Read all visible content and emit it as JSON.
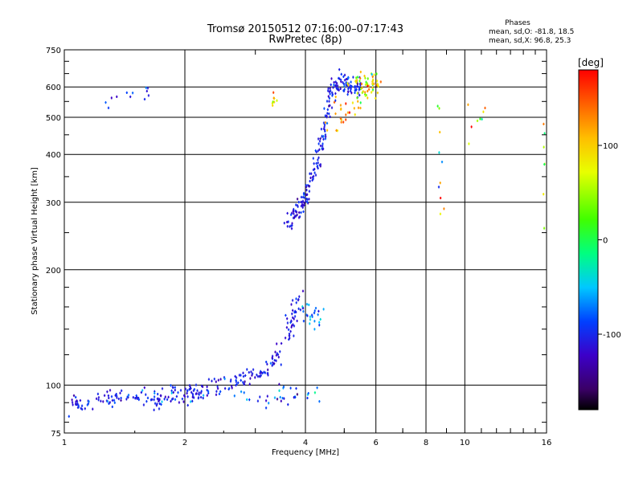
{
  "chart_data": {
    "type": "scatter",
    "title": "Tromsø 20150512 07:16:00–07:17:43",
    "subtitle": "RwPretec (8p)",
    "xlabel": "Frequency [MHz]",
    "ylabel": "Stationary phase Virtual Height [km]",
    "x_scale": "log",
    "y_scale": "log",
    "xlim": [
      1,
      16
    ],
    "ylim": [
      75,
      750
    ],
    "x_ticks": [
      1,
      2,
      4,
      6,
      8,
      10,
      16
    ],
    "x_tick_labels": [
      "1",
      "2",
      "4",
      "6",
      "8",
      "10",
      "16"
    ],
    "y_ticks": [
      75,
      100,
      200,
      300,
      400,
      500,
      600,
      750
    ],
    "y_tick_labels": [
      "75",
      "100",
      "200",
      "300",
      "400",
      "500",
      "600",
      "750"
    ],
    "grid": true,
    "annotation": {
      "heading": "Phases",
      "line1": "mean, sd,O: -81.8, 18.5",
      "line2": "mean, sd,X:  96.8, 25.3"
    },
    "colorbar": {
      "label": "[deg]",
      "range": [
        -180,
        180
      ],
      "ticks": [
        100,
        0,
        -100
      ],
      "tick_labels": [
        "100",
        "0",
        "-100"
      ],
      "colormap": "rainbow-black-to-red"
    },
    "traces": [
      {
        "curve": [
          [
            1.05,
            88
          ],
          [
            1.1,
            90
          ],
          [
            1.2,
            92
          ],
          [
            1.3,
            93
          ],
          [
            1.4,
            94
          ],
          [
            1.5,
            93
          ],
          [
            1.6,
            92
          ],
          [
            1.7,
            91
          ],
          [
            1.8,
            93
          ],
          [
            1.9,
            95
          ],
          [
            2.0,
            94
          ],
          [
            2.1,
            95
          ],
          [
            2.2,
            96
          ],
          [
            2.3,
            97
          ],
          [
            2.4,
            98
          ],
          [
            2.6,
            100
          ],
          [
            2.8,
            103
          ],
          [
            3.0,
            106
          ],
          [
            3.2,
            110
          ],
          [
            3.4,
            118
          ],
          [
            3.5,
            125
          ],
          [
            3.6,
            135
          ],
          [
            3.7,
            148
          ],
          [
            3.8,
            160
          ],
          [
            3.9,
            170
          ]
        ],
        "n": 260,
        "spread_x": 0.02,
        "spread_y": 0.025,
        "phase": -105,
        "phase_sd": 12
      },
      {
        "curve": [
          [
            1.1,
            92
          ],
          [
            1.6,
            94
          ],
          [
            2.2,
            95
          ],
          [
            2.8,
            94
          ],
          [
            3.2,
            93
          ],
          [
            3.6,
            94
          ],
          [
            4.2,
            95
          ]
        ],
        "n": 60,
        "spread_x": 0.03,
        "spread_y": 0.03,
        "phase": -85,
        "phase_sd": 25
      },
      {
        "curve": [
          [
            3.9,
            150
          ],
          [
            4.1,
            152
          ],
          [
            4.3,
            150
          ]
        ],
        "n": 25,
        "spread_x": 0.02,
        "spread_y": 0.04,
        "phase": -70,
        "phase_sd": 20
      },
      {
        "curve": [
          [
            3.55,
            250
          ],
          [
            3.7,
            270
          ],
          [
            3.85,
            288
          ],
          [
            3.95,
            300
          ],
          [
            4.05,
            320
          ],
          [
            4.2,
            350
          ],
          [
            4.3,
            390
          ],
          [
            4.4,
            440
          ],
          [
            4.5,
            500
          ],
          [
            4.6,
            560
          ],
          [
            4.7,
            610
          ],
          [
            4.9,
            620
          ],
          [
            5.1,
            610
          ],
          [
            5.3,
            600
          ],
          [
            5.5,
            605
          ]
        ],
        "n": 220,
        "spread_x": 0.012,
        "spread_y": 0.03,
        "phase": -105,
        "phase_sd": 15
      },
      {
        "curve": [
          [
            5.4,
            590
          ],
          [
            5.6,
            600
          ],
          [
            5.8,
            600
          ],
          [
            6.0,
            620
          ]
        ],
        "n": 60,
        "spread_x": 0.02,
        "spread_y": 0.04,
        "phase": 80,
        "phase_sd": 40
      },
      {
        "curve": [
          [
            4.7,
            480
          ],
          [
            5.0,
            530
          ],
          [
            5.3,
            560
          ]
        ],
        "n": 25,
        "spread_x": 0.03,
        "spread_y": 0.05,
        "phase": 120,
        "phase_sd": 30
      },
      {
        "curve": [
          [
            1.3,
            550
          ],
          [
            1.5,
            570
          ],
          [
            1.65,
            580
          ]
        ],
        "n": 12,
        "spread_x": 0.03,
        "spread_y": 0.03,
        "phase": -100,
        "phase_sd": 20
      },
      {
        "curve": [
          [
            3.3,
            550
          ],
          [
            3.35,
            560
          ]
        ],
        "n": 8,
        "spread_x": 0.01,
        "spread_y": 0.04,
        "phase": 90,
        "phase_sd": 20
      },
      {
        "curve": [
          [
            8.6,
            500
          ],
          [
            8.7,
            330
          ],
          [
            8.8,
            270
          ]
        ],
        "n": 10,
        "spread_x": 0.01,
        "spread_y": 0.15,
        "phase": 30,
        "phase_sd": 90
      },
      {
        "curve": [
          [
            10.5,
            560
          ],
          [
            11.2,
            450
          ]
        ],
        "n": 8,
        "spread_x": 0.02,
        "spread_y": 0.1,
        "phase": 60,
        "phase_sd": 60
      },
      {
        "curve": [
          [
            15.8,
            550
          ],
          [
            15.8,
            350
          ]
        ],
        "n": 8,
        "spread_x": 0.005,
        "spread_y": 0.15,
        "phase": 60,
        "phase_sd": 70
      }
    ]
  }
}
